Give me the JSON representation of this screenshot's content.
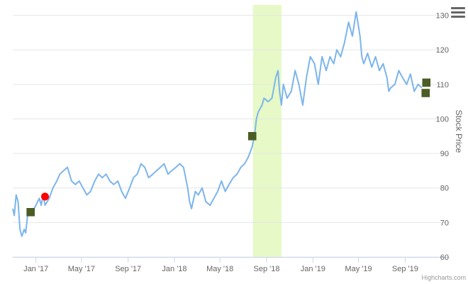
{
  "chart_data": {
    "type": "line",
    "title": "",
    "xlabel": "",
    "ylabel": "Stock Price",
    "credits": "Highcharts.com",
    "y_axis_side": "right",
    "ylim": [
      60,
      133
    ],
    "xlim": [
      "2016-11-01",
      "2019-11-01"
    ],
    "y_ticks": [
      60,
      70,
      80,
      90,
      100,
      110,
      120,
      130
    ],
    "x_ticks": [
      {
        "date": "2017-01-01",
        "label": "Jan '17"
      },
      {
        "date": "2017-05-01",
        "label": "May '17"
      },
      {
        "date": "2017-09-01",
        "label": "Sep '17"
      },
      {
        "date": "2018-01-01",
        "label": "Jan '18"
      },
      {
        "date": "2018-05-01",
        "label": "May '18"
      },
      {
        "date": "2018-09-01",
        "label": "Sep '18"
      },
      {
        "date": "2019-01-01",
        "label": "Jan '19"
      },
      {
        "date": "2019-05-01",
        "label": "May '19"
      },
      {
        "date": "2019-09-01",
        "label": "Sep '19"
      }
    ],
    "grid": true,
    "colors": {
      "line": "#7cb5ec",
      "band": "#e6f9c6",
      "square_marker": "#4a5e23",
      "circle_marker": "#ff0000",
      "grid": "#e6e6e6"
    },
    "plot_band": {
      "from": "2018-07-27",
      "to": "2018-10-10"
    },
    "series": [
      {
        "points": [
          [
            "2016-11-01",
            74
          ],
          [
            "2016-11-05",
            72
          ],
          [
            "2016-11-10",
            78
          ],
          [
            "2016-11-15",
            76
          ],
          [
            "2016-11-20",
            68
          ],
          [
            "2016-11-25",
            66
          ],
          [
            "2016-12-01",
            68
          ],
          [
            "2016-12-05",
            67
          ],
          [
            "2016-12-10",
            72
          ],
          [
            "2016-12-15",
            73
          ],
          [
            "2016-12-20",
            72.5
          ],
          [
            "2017-01-01",
            75
          ],
          [
            "2017-01-10",
            77
          ],
          [
            "2017-01-15",
            75
          ],
          [
            "2017-01-20",
            78
          ],
          [
            "2017-01-25",
            75
          ],
          [
            "2017-02-05",
            77
          ],
          [
            "2017-02-15",
            80
          ],
          [
            "2017-02-25",
            82
          ],
          [
            "2017-03-05",
            84
          ],
          [
            "2017-03-15",
            85
          ],
          [
            "2017-03-25",
            86
          ],
          [
            "2017-04-05",
            82
          ],
          [
            "2017-04-15",
            81
          ],
          [
            "2017-04-25",
            82
          ],
          [
            "2017-05-05",
            80
          ],
          [
            "2017-05-15",
            78
          ],
          [
            "2017-05-25",
            79
          ],
          [
            "2017-06-05",
            82
          ],
          [
            "2017-06-15",
            84
          ],
          [
            "2017-06-25",
            83
          ],
          [
            "2017-07-05",
            84
          ],
          [
            "2017-07-15",
            82
          ],
          [
            "2017-07-25",
            81
          ],
          [
            "2017-08-05",
            82
          ],
          [
            "2017-08-15",
            79
          ],
          [
            "2017-08-25",
            77
          ],
          [
            "2017-09-05",
            80
          ],
          [
            "2017-09-15",
            83
          ],
          [
            "2017-09-25",
            84
          ],
          [
            "2017-10-05",
            87
          ],
          [
            "2017-10-15",
            86
          ],
          [
            "2017-10-25",
            83
          ],
          [
            "2017-11-05",
            84
          ],
          [
            "2017-11-15",
            85
          ],
          [
            "2017-11-25",
            86
          ],
          [
            "2017-12-05",
            87
          ],
          [
            "2017-12-15",
            84
          ],
          [
            "2017-12-25",
            85
          ],
          [
            "2018-01-05",
            86
          ],
          [
            "2018-01-15",
            87
          ],
          [
            "2018-01-25",
            86
          ],
          [
            "2018-02-05",
            80
          ],
          [
            "2018-02-10",
            76
          ],
          [
            "2018-02-15",
            74
          ],
          [
            "2018-02-25",
            79
          ],
          [
            "2018-03-05",
            78
          ],
          [
            "2018-03-15",
            80
          ],
          [
            "2018-03-25",
            76
          ],
          [
            "2018-04-05",
            75
          ],
          [
            "2018-04-15",
            77
          ],
          [
            "2018-04-25",
            79
          ],
          [
            "2018-05-05",
            82
          ],
          [
            "2018-05-15",
            79
          ],
          [
            "2018-05-25",
            81
          ],
          [
            "2018-06-05",
            83
          ],
          [
            "2018-06-15",
            84
          ],
          [
            "2018-06-25",
            86
          ],
          [
            "2018-07-05",
            87
          ],
          [
            "2018-07-15",
            89
          ],
          [
            "2018-07-25",
            92
          ],
          [
            "2018-08-01",
            96
          ],
          [
            "2018-08-05",
            100
          ],
          [
            "2018-08-10",
            102
          ],
          [
            "2018-08-20",
            104
          ],
          [
            "2018-08-25",
            106
          ],
          [
            "2018-09-05",
            105
          ],
          [
            "2018-09-15",
            106
          ],
          [
            "2018-09-25",
            112
          ],
          [
            "2018-10-01",
            114
          ],
          [
            "2018-10-05",
            108
          ],
          [
            "2018-10-10",
            104
          ],
          [
            "2018-10-15",
            110
          ],
          [
            "2018-10-25",
            106
          ],
          [
            "2018-11-05",
            108
          ],
          [
            "2018-11-15",
            114
          ],
          [
            "2018-11-25",
            110
          ],
          [
            "2018-12-05",
            104
          ],
          [
            "2018-12-15",
            112
          ],
          [
            "2018-12-25",
            118
          ],
          [
            "2019-01-05",
            116
          ],
          [
            "2019-01-15",
            110
          ],
          [
            "2019-01-25",
            118
          ],
          [
            "2019-02-05",
            114
          ],
          [
            "2019-02-15",
            118
          ],
          [
            "2019-02-25",
            116
          ],
          [
            "2019-03-05",
            120
          ],
          [
            "2019-03-15",
            118
          ],
          [
            "2019-03-25",
            122
          ],
          [
            "2019-04-05",
            128
          ],
          [
            "2019-04-15",
            124
          ],
          [
            "2019-04-25",
            131
          ],
          [
            "2019-05-05",
            124
          ],
          [
            "2019-05-10",
            118
          ],
          [
            "2019-05-15",
            116
          ],
          [
            "2019-05-25",
            119
          ],
          [
            "2019-06-05",
            115
          ],
          [
            "2019-06-15",
            118
          ],
          [
            "2019-06-25",
            114
          ],
          [
            "2019-07-05",
            116
          ],
          [
            "2019-07-15",
            112
          ],
          [
            "2019-07-20",
            108
          ],
          [
            "2019-07-25",
            109
          ],
          [
            "2019-08-05",
            110
          ],
          [
            "2019-08-15",
            114
          ],
          [
            "2019-08-25",
            112
          ],
          [
            "2019-09-05",
            110
          ],
          [
            "2019-09-15",
            113
          ],
          [
            "2019-09-25",
            108
          ],
          [
            "2019-10-05",
            110
          ],
          [
            "2019-10-15",
            109
          ]
        ]
      }
    ],
    "markers": [
      {
        "shape": "square",
        "date": "2016-12-18",
        "value": 73
      },
      {
        "shape": "circle",
        "date": "2017-01-25",
        "value": 77.5
      },
      {
        "shape": "square",
        "date": "2018-07-25",
        "value": 95
      },
      {
        "shape": "square",
        "date": "2019-10-27",
        "value": 110.5
      },
      {
        "shape": "square",
        "date": "2019-10-25",
        "value": 107.5
      }
    ]
  }
}
